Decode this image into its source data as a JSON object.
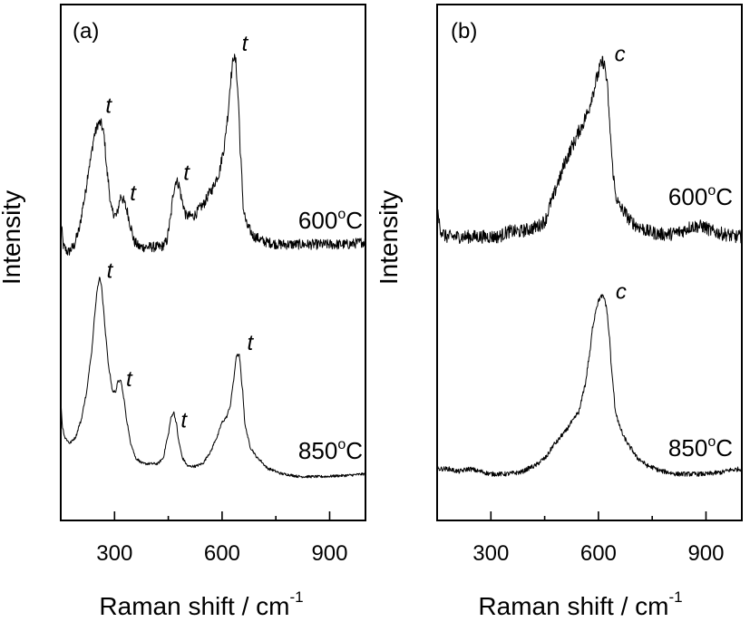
{
  "chart_data": [
    {
      "type": "line",
      "panel_label": "(a)",
      "xlabel": "Raman shift / cm",
      "xlabel_sup": "-1",
      "ylabel": "Intensity",
      "xlim": [
        150,
        1000
      ],
      "ylim": [
        0,
        100
      ],
      "xticks_major": [
        300,
        600,
        900
      ],
      "xticks_minor": [
        450,
        750
      ],
      "xtick_labels": [
        "300",
        "600",
        "900"
      ],
      "grid": false,
      "series": [
        {
          "name": "600°C",
          "label_main": "600",
          "label_deg": "o",
          "label_unit": "C",
          "noise": 1.0,
          "x": [
            150,
            158,
            170,
            185,
            200,
            215,
            230,
            245,
            255,
            262,
            270,
            280,
            292,
            305,
            318,
            325,
            335,
            345,
            355,
            370,
            390,
            410,
            430,
            445,
            455,
            465,
            472,
            480,
            488,
            500,
            520,
            545,
            570,
            590,
            605,
            615,
            625,
            632,
            638,
            645,
            652,
            660,
            670,
            690,
            720,
            760,
            800,
            850,
            900,
            950,
            1000
          ],
          "y": [
            58,
            53,
            52,
            53,
            56,
            62,
            69,
            75,
            77,
            77,
            75,
            67,
            60,
            59,
            63,
            62,
            60,
            57,
            54,
            53,
            53,
            53,
            53,
            54,
            58,
            64,
            66,
            65,
            62,
            59,
            59,
            61,
            64,
            67,
            72,
            78,
            86,
            90,
            89,
            82,
            70,
            60,
            57,
            55,
            54,
            53.5,
            53.5,
            53.5,
            53.5,
            53.5,
            54
          ]
        },
        {
          "name": "850°C",
          "label_main": "850",
          "label_deg": "o",
          "label_unit": "C",
          "noise": 0.25,
          "x": [
            150,
            155,
            162,
            175,
            190,
            205,
            220,
            235,
            245,
            252,
            258,
            263,
            268,
            275,
            285,
            295,
            303,
            310,
            318,
            325,
            335,
            345,
            360,
            380,
            400,
            420,
            435,
            448,
            458,
            465,
            472,
            480,
            490,
            505,
            525,
            545,
            565,
            585,
            600,
            612,
            622,
            632,
            640,
            648,
            656,
            665,
            680,
            700,
            730,
            770,
            820,
            880,
            940,
            1000
          ],
          "y": [
            23,
            18,
            16,
            15,
            16,
            19,
            24,
            32,
            40,
            45,
            47,
            46,
            42,
            36,
            29,
            25,
            25,
            27,
            27,
            24,
            19,
            15,
            12,
            11,
            11,
            11,
            12,
            16,
            20,
            21,
            19,
            15,
            12,
            10.5,
            10.5,
            11,
            13,
            16,
            19,
            20,
            22,
            27,
            32,
            32,
            26,
            18,
            14,
            12,
            10,
            9,
            8.5,
            8.5,
            8.7,
            9
          ]
        }
      ],
      "annotations": [
        {
          "text": "t",
          "x": 275,
          "y": 79
        },
        {
          "text": "t",
          "x": 343,
          "y": 62
        },
        {
          "text": "t",
          "x": 492,
          "y": 66
        },
        {
          "text": "t",
          "x": 655,
          "y": 91
        },
        {
          "text": "t",
          "x": 278,
          "y": 47
        },
        {
          "text": "t",
          "x": 332,
          "y": 26
        },
        {
          "text": "t",
          "x": 485,
          "y": 18
        },
        {
          "text": "t",
          "x": 670,
          "y": 33
        }
      ]
    },
    {
      "type": "line",
      "panel_label": "(b)",
      "xlabel": "Raman shift / cm",
      "xlabel_sup": "-1",
      "ylabel": "Intensity",
      "xlim": [
        150,
        1000
      ],
      "ylim": [
        0,
        100
      ],
      "xticks_major": [
        300,
        600,
        900
      ],
      "xticks_minor": [
        450,
        750
      ],
      "xtick_labels": [
        "300",
        "600",
        "900"
      ],
      "grid": false,
      "series": [
        {
          "name": "600°C",
          "label_main": "600",
          "label_deg": "o",
          "label_unit": "C",
          "noise": 1.3,
          "x": [
            150,
            155,
            162,
            175,
            200,
            230,
            260,
            290,
            320,
            350,
            380,
            410,
            430,
            450,
            470,
            490,
            510,
            530,
            550,
            570,
            585,
            597,
            605,
            612,
            618,
            625,
            632,
            640,
            648,
            658,
            670,
            690,
            710,
            740,
            770,
            800,
            830,
            860,
            890,
            920,
            950,
            980,
            1000
          ],
          "y": [
            60,
            58,
            56,
            55,
            55,
            55,
            55,
            55,
            55,
            56,
            56,
            56.5,
            57,
            58,
            62,
            66,
            70,
            73,
            76,
            79,
            83,
            86,
            88,
            89,
            88,
            84,
            76,
            68,
            63,
            61,
            60,
            58,
            57,
            56,
            55.5,
            55.5,
            56,
            57,
            57,
            56,
            55.5,
            55,
            55
          ]
        },
        {
          "name": "850°C",
          "label_main": "850",
          "label_deg": "o",
          "label_unit": "C",
          "noise": 0.45,
          "x": [
            150,
            180,
            210,
            240,
            270,
            300,
            340,
            380,
            420,
            450,
            480,
            505,
            525,
            545,
            562,
            575,
            585,
            595,
            603,
            610,
            617,
            623,
            630,
            638,
            648,
            660,
            672,
            690,
            710,
            740,
            780,
            820,
            860,
            900,
            940,
            970,
            1000
          ],
          "y": [
            10,
            10,
            9.5,
            10,
            9.5,
            9,
            9,
            9.3,
            10.5,
            12,
            15,
            17,
            19,
            21,
            26,
            32,
            38,
            41.5,
            43,
            43.5,
            43,
            41,
            36,
            28,
            21,
            18,
            16,
            14,
            12,
            10.5,
            9.5,
            9,
            9,
            9,
            9.3,
            9.8,
            10
          ]
        }
      ],
      "annotations": [
        {
          "text": "c",
          "x": 645,
          "y": 89
        },
        {
          "text": "c",
          "x": 648,
          "y": 43
        }
      ]
    }
  ]
}
